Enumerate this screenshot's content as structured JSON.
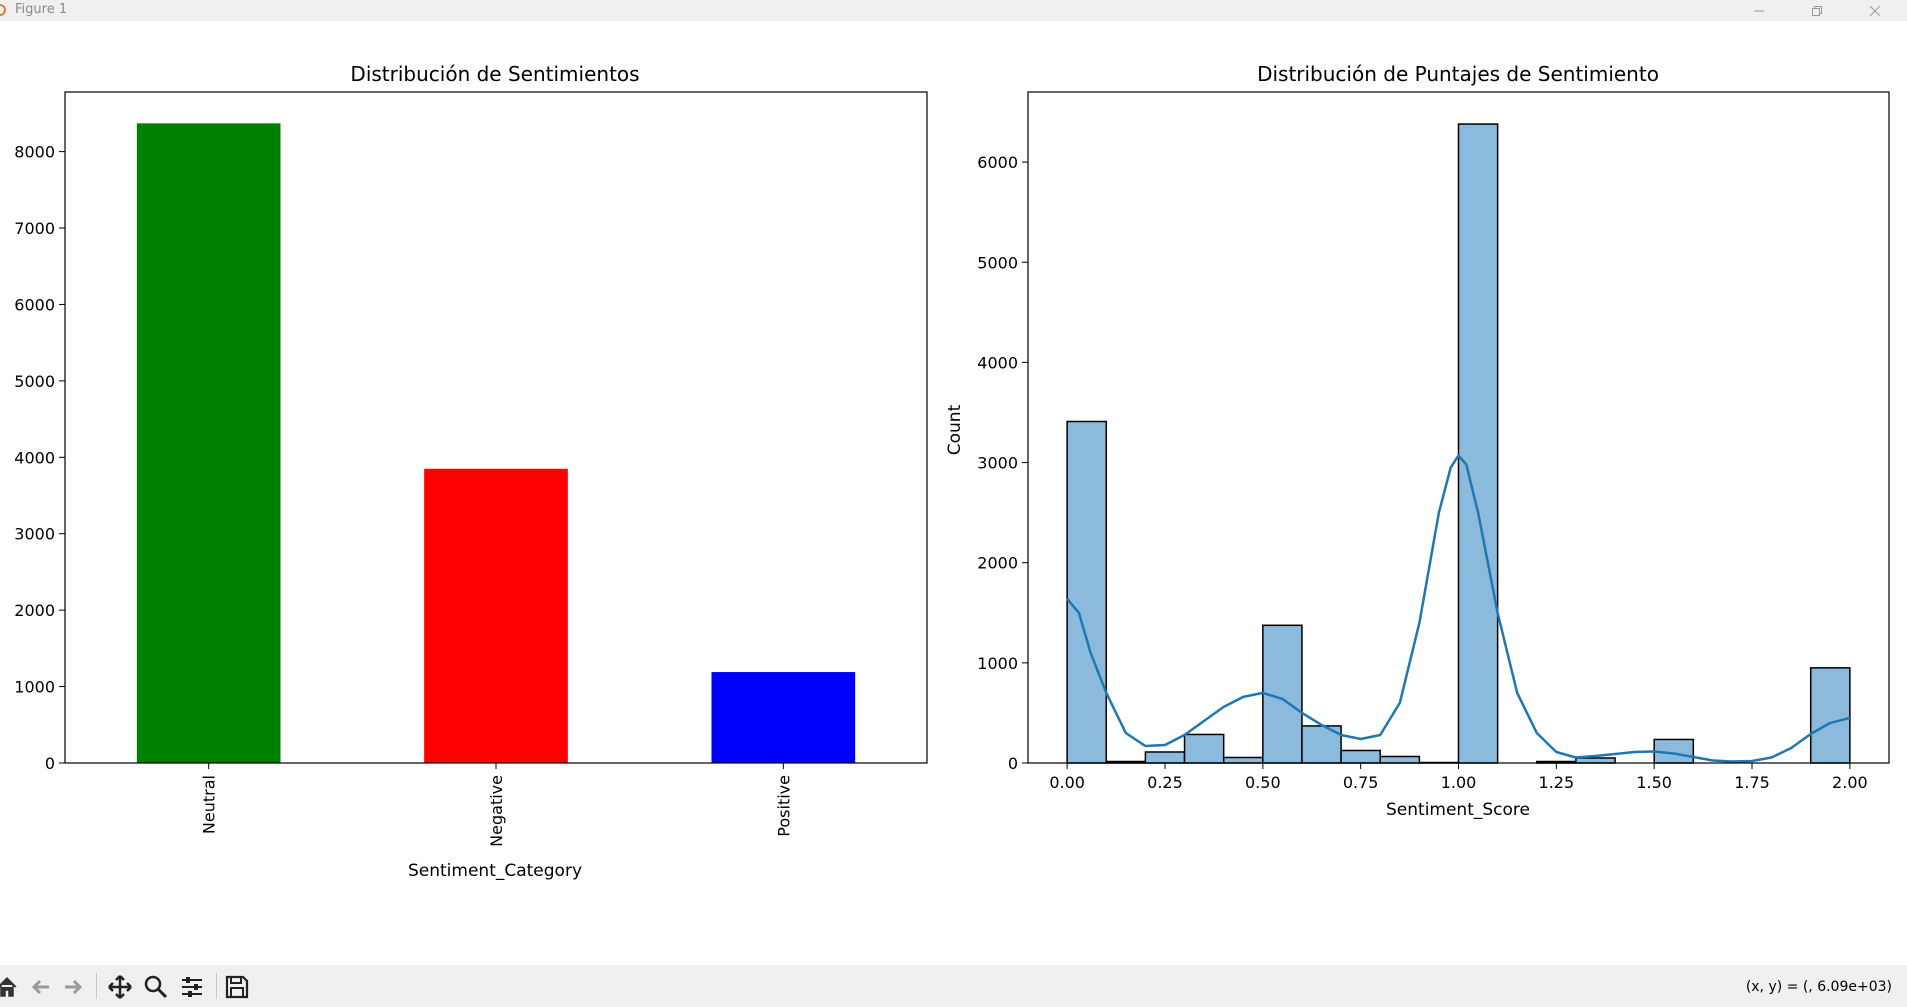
{
  "window": {
    "title": "Figure 1",
    "icons": [
      "app-icon",
      "minimize-icon",
      "restore-icon",
      "close-icon"
    ]
  },
  "toolbar": {
    "icons": [
      "home-icon",
      "back-icon",
      "forward-icon",
      "pan-icon",
      "zoom-icon",
      "configure-subplots-icon",
      "save-icon"
    ],
    "coords": "(x, y) = (, 6.09e+03)"
  },
  "chart_data": [
    {
      "type": "bar",
      "title": "Distribución de Sentimientos",
      "xlabel": "Sentiment_Category",
      "ylabel": "",
      "categories": [
        "Neutral",
        "Negative",
        "Positive"
      ],
      "values": [
        8370,
        3850,
        1190
      ],
      "colors": [
        "#008000",
        "#ff0000",
        "#0000ff"
      ],
      "ylim": [
        0,
        8780
      ],
      "yticks": [
        0,
        1000,
        2000,
        3000,
        4000,
        5000,
        6000,
        7000,
        8000
      ],
      "grid": false,
      "legend": false
    },
    {
      "type": "histogram",
      "title": "Distribución de Puntajes de Sentimiento",
      "xlabel": "Sentiment_Score",
      "ylabel": "Count",
      "bin_width": 0.1,
      "bin_left_edges": [
        0.0,
        0.1,
        0.2,
        0.3,
        0.4,
        0.5,
        0.6,
        0.7,
        0.8,
        0.9,
        1.0,
        1.1,
        1.2,
        1.3,
        1.4,
        1.5,
        1.6,
        1.7,
        1.8,
        1.9
      ],
      "counts": [
        3410,
        15,
        110,
        285,
        55,
        1375,
        370,
        125,
        65,
        5,
        6380,
        0,
        15,
        50,
        0,
        235,
        0,
        0,
        0,
        950
      ],
      "bar_color": "#8bbadc",
      "kde": {
        "color": "#1f77b4",
        "x": [
          0.0,
          0.03,
          0.06,
          0.1,
          0.15,
          0.2,
          0.25,
          0.3,
          0.35,
          0.4,
          0.45,
          0.5,
          0.55,
          0.6,
          0.65,
          0.7,
          0.75,
          0.8,
          0.85,
          0.9,
          0.95,
          0.98,
          1.0,
          1.02,
          1.05,
          1.1,
          1.15,
          1.2,
          1.25,
          1.3,
          1.35,
          1.4,
          1.45,
          1.5,
          1.55,
          1.6,
          1.65,
          1.7,
          1.75,
          1.8,
          1.85,
          1.9,
          1.95,
          2.0
        ],
        "y": [
          1640,
          1500,
          1100,
          700,
          300,
          170,
          180,
          280,
          420,
          560,
          660,
          700,
          640,
          500,
          380,
          280,
          240,
          280,
          600,
          1400,
          2500,
          2950,
          3070,
          2980,
          2500,
          1500,
          700,
          300,
          110,
          55,
          70,
          90,
          110,
          115,
          95,
          60,
          25,
          15,
          20,
          55,
          150,
          290,
          400,
          450
        ]
      },
      "xlim": [
        -0.1,
        2.1
      ],
      "xticks": [
        "0.00",
        "0.25",
        "0.50",
        "0.75",
        "1.00",
        "1.25",
        "1.50",
        "1.75",
        "2.00"
      ],
      "ylim": [
        0,
        6700
      ],
      "yticks": [
        0,
        1000,
        2000,
        3000,
        4000,
        5000,
        6000
      ],
      "grid": false,
      "legend": false
    }
  ]
}
